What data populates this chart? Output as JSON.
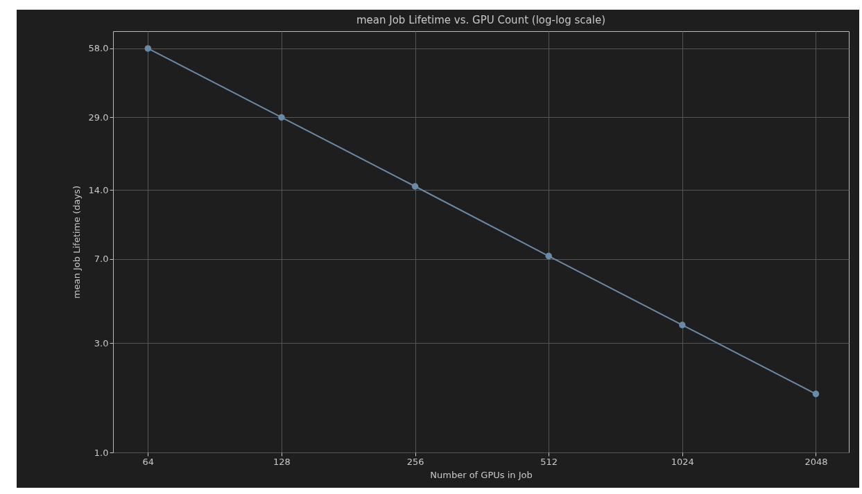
{
  "chart_data": {
    "type": "line",
    "title": "mean Job Lifetime vs. GPU Count (log-log scale)",
    "xlabel": "Number of GPUs in Job",
    "ylabel": "mean Job Lifetime (days)",
    "x": [
      64,
      128,
      256,
      512,
      1024,
      2048
    ],
    "series": [
      {
        "color": "#6b8aa6",
        "values": [
          58,
          29,
          14.5,
          7.2,
          3.6,
          1.8
        ]
      }
    ],
    "xlim": [
      53.4,
      2430
    ],
    "xticks": [
      64,
      128,
      256,
      512,
      1024,
      2048
    ],
    "ylim": [
      1,
      69
    ],
    "yticks": [
      {
        "value": 1,
        "label": "1.0"
      },
      {
        "value": 3,
        "label": "3.0"
      },
      {
        "value": 7,
        "label": "7.0"
      },
      {
        "value": 14,
        "label": "14.0"
      },
      {
        "value": 29,
        "label": "29.0"
      },
      {
        "value": 58,
        "label": "58.0"
      }
    ],
    "log": "xy",
    "grid": true,
    "marker": "circle",
    "line_style": "solid"
  }
}
